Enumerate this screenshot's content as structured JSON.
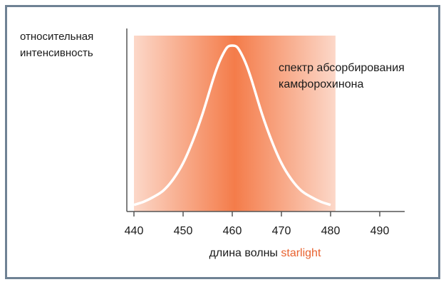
{
  "chart_data": {
    "type": "area",
    "title": "",
    "ylabel_lines": [
      "относительная",
      "интенсивность"
    ],
    "annotation_lines": [
      "спектр абсорбирования",
      "камфорохинона"
    ],
    "xlabel": {
      "prefix": "длина волны",
      "highlight": "starlight"
    },
    "xlim": [
      440,
      490
    ],
    "xticks": [
      440,
      450,
      460,
      470,
      480,
      490
    ],
    "xtick_labels": [
      "440",
      "450",
      "460",
      "470",
      "480",
      "490"
    ],
    "band": {
      "from": 440,
      "to": 481,
      "peak": 460
    },
    "series": [
      {
        "x": [
          440,
          442,
          444,
          446,
          448,
          450,
          452,
          454,
          456,
          457,
          458,
          459,
          460,
          461,
          462,
          463,
          464,
          466,
          468,
          470,
          472,
          474,
          476,
          478,
          480
        ],
        "y": [
          0.01,
          0.03,
          0.06,
          0.1,
          0.17,
          0.27,
          0.41,
          0.58,
          0.78,
          0.87,
          0.94,
          0.99,
          1.0,
          0.99,
          0.94,
          0.87,
          0.78,
          0.58,
          0.41,
          0.27,
          0.17,
          0.1,
          0.06,
          0.03,
          0.01
        ]
      }
    ],
    "colors": {
      "band": "#f47c4a",
      "curve": "#ffffff",
      "accent": "#e8622f",
      "axis": "#555555",
      "frame": "#6f8294"
    },
    "grid": false
  }
}
